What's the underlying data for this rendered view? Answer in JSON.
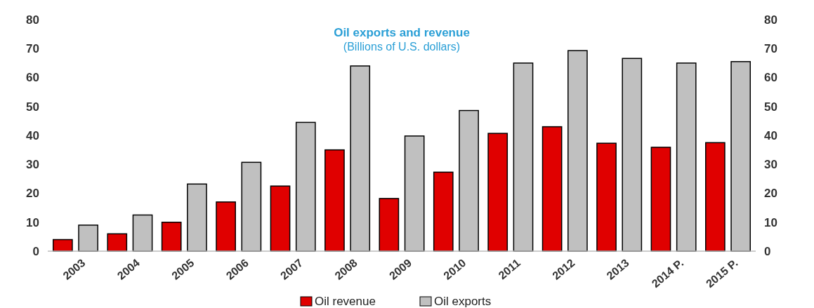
{
  "chart_data": {
    "type": "bar",
    "title": "Oil exports and  revenue",
    "subtitle": "(Billions of U.S. dollars)",
    "categories": [
      "2003",
      "2004",
      "2005",
      "2006",
      "2007",
      "2008",
      "2009",
      "2010",
      "2011",
      "2012",
      "2013",
      "2014 P.",
      "2015 P."
    ],
    "series": [
      {
        "name": "Oil revenue",
        "color": "#e00000",
        "values": [
          4,
          6,
          10,
          17,
          22.5,
          35,
          18.2,
          27.3,
          40.7,
          43,
          37.3,
          35.9,
          37.5
        ]
      },
      {
        "name": "Oil exports",
        "color": "#c0c0c0",
        "values": [
          9,
          12.5,
          23.2,
          30.7,
          44.5,
          64,
          39.8,
          48.6,
          65,
          69.3,
          66.6,
          65,
          65.5
        ]
      }
    ],
    "ylim": [
      0,
      80
    ],
    "yticks": [
      0,
      10,
      20,
      30,
      40,
      50,
      60,
      70,
      80
    ],
    "y2lim": [
      0,
      80
    ],
    "y2ticks": [
      0,
      10,
      20,
      30,
      40,
      50,
      60,
      70,
      80
    ],
    "grid": false,
    "legend": "bottom"
  }
}
